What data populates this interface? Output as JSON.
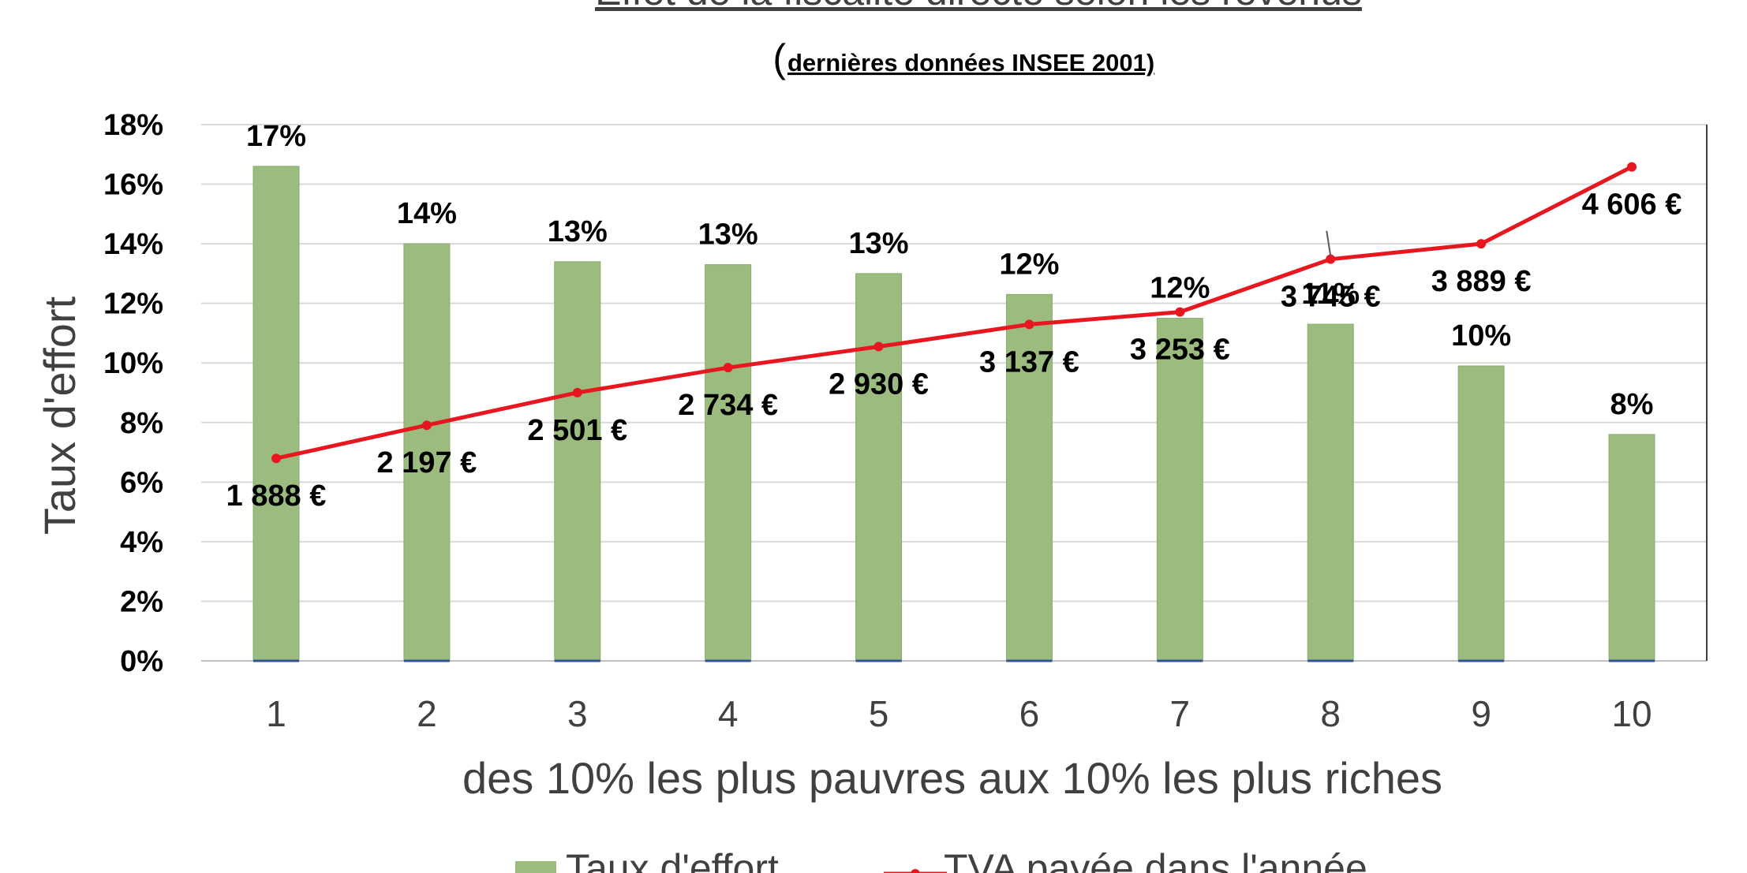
{
  "chart_data": {
    "type": "bar",
    "title": "Effet de la fiscalité directe selon les revenus",
    "subtitle_paren": "(",
    "subtitle": "dernières données INSEE 2001)",
    "xlabel": "des 10% les plus pauvres aux 10% les plus riches",
    "ylabel": "Taux d'effort",
    "ylim": [
      0,
      18
    ],
    "y2lim": [
      0,
      5000
    ],
    "yticks": [
      "0%",
      "2%",
      "4%",
      "6%",
      "8%",
      "10%",
      "12%",
      "14%",
      "16%",
      "18%"
    ],
    "categories": [
      "1",
      "2",
      "3",
      "4",
      "5",
      "6",
      "7",
      "8",
      "9",
      "10"
    ],
    "grid": true,
    "legend_position": "bottom",
    "series": [
      {
        "name": "Taux d'effort",
        "type": "bar",
        "axis": "left",
        "color": "#9bbb7f",
        "values": [
          16.6,
          14.0,
          13.4,
          13.3,
          13.0,
          12.3,
          11.5,
          11.3,
          9.9,
          7.6
        ],
        "labels": [
          "17%",
          "14%",
          "13%",
          "13%",
          "13%",
          "12%",
          "12%",
          "11%",
          "10%",
          "8%"
        ]
      },
      {
        "name": "TVA payée dans l'année",
        "type": "line",
        "axis": "right",
        "color": "#e8171f",
        "values": [
          1888,
          2197,
          2501,
          2734,
          2930,
          3137,
          3253,
          3745,
          3889,
          4606
        ],
        "labels": [
          "1 888 €",
          "2 197 €",
          "2 501 €",
          "2 734 €",
          "2 930 €",
          "3 137 €",
          "3 253 €",
          "3 745 €",
          "3 889 €",
          "4 606 €"
        ]
      }
    ]
  }
}
